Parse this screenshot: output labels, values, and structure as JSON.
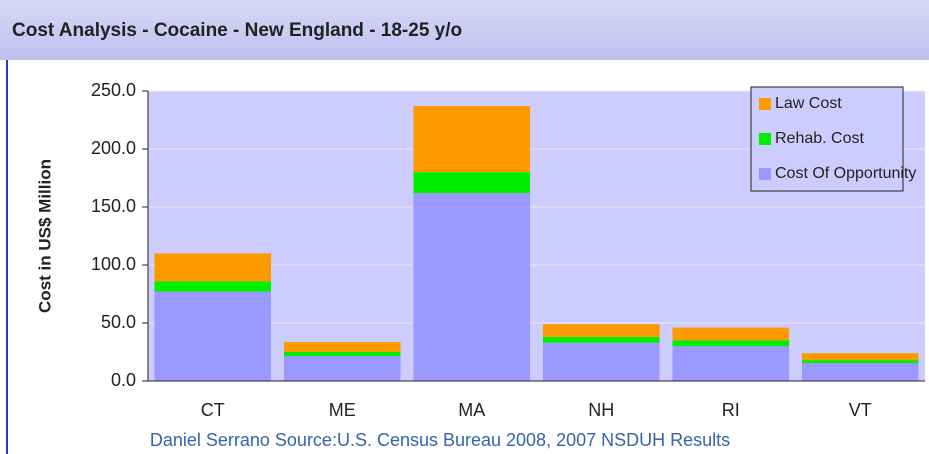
{
  "chart_data": {
    "type": "stacked_bar",
    "title": "Cost Analysis - Cocaine - New England - 18-25 y/o",
    "y_label": "Cost in US$ Million",
    "source": "Daniel Serrano Source:U.S. Census Bureau 2008, 2007 NSDUH Results",
    "categories": [
      "CT",
      "ME",
      "MA",
      "NH",
      "RI",
      "VT"
    ],
    "series": [
      {
        "name": "Cost Of Opportunity",
        "color": "#9999ff",
        "values": [
          77,
          21.5,
          162,
          33,
          30,
          15.5
        ]
      },
      {
        "name": "Rehab. Cost",
        "color": "#00ee00",
        "values": [
          9,
          3.5,
          18,
          5,
          5,
          2.5
        ]
      },
      {
        "name": "Law Cost",
        "color": "#ff9900",
        "values": [
          24,
          8.6,
          57,
          11,
          11,
          6
        ]
      }
    ],
    "ylim": [
      0,
      250
    ],
    "yticks": [
      {
        "value": 0,
        "label": "0.0"
      },
      {
        "value": 50,
        "label": "50.0"
      },
      {
        "value": 100,
        "label": "100.0"
      },
      {
        "value": 150,
        "label": "150.0"
      },
      {
        "value": 200,
        "label": "200.0"
      },
      {
        "value": 250,
        "label": "250.0"
      }
    ],
    "grid": true
  }
}
